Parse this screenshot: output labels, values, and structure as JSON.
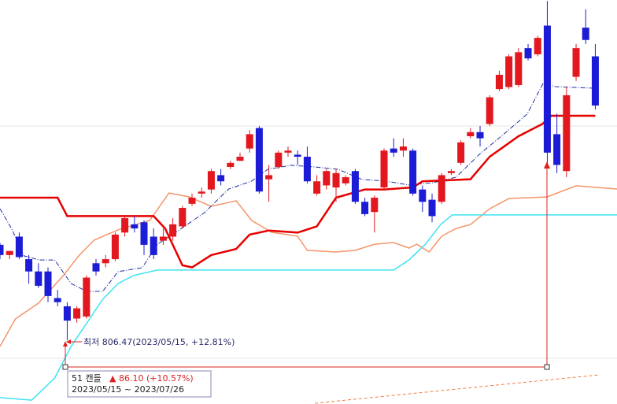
{
  "chart_data": {
    "type": "candlestick",
    "xlim": [
      0,
      64.26
    ],
    "ylim": [
      775.3,
      972.5
    ],
    "up_color": "#e3171e",
    "down_color": "#1c1cd6",
    "open": [
      853,
      848,
      857,
      846,
      840,
      840,
      827,
      823,
      817,
      818,
      844,
      844,
      846,
      859,
      863,
      864,
      857,
      855,
      857,
      862,
      873,
      878,
      880,
      887,
      891,
      894,
      900,
      910,
      885,
      891,
      898,
      897,
      896,
      878,
      882,
      881,
      883,
      889,
      874,
      869,
      881,
      900,
      899,
      899,
      880,
      875,
      874,
      888,
      893,
      906,
      908,
      912,
      929,
      930,
      931,
      949,
      946,
      960,
      907,
      889,
      935,
      959,
      945
    ],
    "high": [
      854,
      850,
      859,
      848,
      844,
      842,
      831,
      825,
      823,
      838,
      846,
      848,
      859,
      867,
      867,
      865,
      861,
      861,
      866,
      872,
      878,
      881,
      890,
      890,
      894,
      898,
      909,
      911,
      892,
      899,
      901,
      899,
      901,
      887,
      890,
      890,
      887,
      890,
      876,
      877,
      900,
      905,
      905,
      900,
      882,
      878,
      888,
      890,
      904,
      910,
      911,
      926,
      938,
      946,
      949,
      951,
      955,
      972,
      917,
      930,
      951,
      968,
      951
    ],
    "low": [
      846,
      846,
      846,
      834,
      832,
      825,
      823,
      806.47,
      815,
      817,
      838,
      842,
      845,
      857,
      859,
      848,
      846,
      853,
      855,
      861,
      872,
      876,
      878,
      882,
      890,
      894,
      898,
      878,
      874,
      890,
      896,
      892,
      883,
      877,
      880,
      874,
      882,
      873,
      867,
      859,
      880,
      896,
      896,
      877,
      869,
      864,
      873,
      887,
      892,
      905,
      901,
      911,
      928,
      929,
      930,
      943,
      945,
      892,
      888,
      886,
      933,
      951,
      919
    ],
    "close": [
      848,
      850,
      847,
      840,
      833,
      828,
      825,
      816,
      822,
      837,
      840,
      846,
      858,
      866,
      861,
      853,
      848,
      857,
      863,
      871,
      876,
      879,
      889,
      884,
      893,
      896,
      907,
      879,
      887,
      898,
      899,
      896,
      884,
      884,
      889,
      888,
      886,
      874,
      868,
      876,
      899,
      898,
      901,
      878,
      874,
      867,
      887,
      889,
      903,
      908,
      905,
      925,
      936,
      945,
      947,
      944,
      954,
      898,
      892,
      926,
      949,
      953,
      921
    ],
    "lines": [
      {
        "color": "#f4956a",
        "width": 1.5,
        "x": [
          0,
          1.6,
          4,
          6.6,
          8.2,
          9.8,
          12.3,
          15.6,
          17.6,
          19.7,
          22,
          24.6,
          26.2,
          28.3,
          31,
          32,
          35,
          37,
          39,
          41,
          42.6,
          43.4,
          44.7,
          46,
          47.5,
          49,
          51,
          53,
          57,
          60,
          64.3
        ],
        "values": [
          803.4,
          816.8,
          824.5,
          838,
          847.6,
          855.3,
          860.3,
          864.9,
          878.3,
          876.4,
          871.8,
          874.5,
          864.9,
          859.1,
          857.2,
          850.3,
          849.5,
          850.3,
          853.3,
          854.1,
          851.4,
          853.3,
          849.5,
          857.2,
          861,
          862.9,
          870.6,
          875.6,
          876.4,
          881.8,
          880.2
        ]
      },
      {
        "color": "#3ee3f2",
        "width": 1.5,
        "x": [
          0,
          3.3,
          5.7,
          7.4,
          10.7,
          12.3,
          13.9,
          16.4,
          41,
          42.6,
          44.3,
          45.9,
          47.1,
          64.3
        ],
        "values": [
          778.4,
          777.2,
          788,
          803.4,
          826.4,
          834.1,
          838,
          840.7,
          840.7,
          845.6,
          853.3,
          862.9,
          867.6,
          867.6
        ]
      },
      {
        "color": "#1f2fa0",
        "width": 1,
        "dash": "6 2 1 2",
        "x": [
          0,
          1.2,
          2.5,
          4.1,
          5.7,
          7.4,
          9,
          10.7,
          12.3,
          14.8,
          16.4,
          18.9,
          21.3,
          23.8,
          26.2,
          27.9,
          30.3,
          32.8,
          35.2,
          37.7,
          40.2,
          42.6,
          45.1,
          47.5,
          50,
          52.5,
          54.9,
          56.6,
          57.8,
          62
        ],
        "values": [
          870.6,
          861,
          847.6,
          845.6,
          845.6,
          834.1,
          830.3,
          830.3,
          839.9,
          841.8,
          853.3,
          861,
          868.7,
          880.2,
          884.1,
          889.9,
          891.8,
          891,
          889.9,
          884.9,
          884.1,
          882.2,
          883.3,
          886,
          897.5,
          907.1,
          916.8,
          932.1,
          930.2,
          929.4
        ]
      },
      {
        "color": "#e60000",
        "width": 2.5,
        "x": [
          0,
          6,
          7,
          16,
          17.2,
          19,
          20,
          22,
          24.6,
          26,
          28,
          31,
          33,
          35,
          38,
          40,
          43,
          44,
          49,
          51,
          54,
          56.5,
          57.4,
          62
        ],
        "values": [
          876,
          876,
          867,
          867,
          861,
          843,
          842,
          848,
          851,
          858,
          860,
          859,
          862,
          876,
          880,
          880,
          881,
          884,
          885,
          896,
          906,
          912,
          916,
          916
        ]
      },
      {
        "color": "#f08040",
        "width": 1,
        "dash": "4 3",
        "x": [
          32.8,
          62.3
        ],
        "values": [
          775.7,
          789.5
        ]
      }
    ],
    "low_note": "최저 806.47(2023/05/15, +12.81%)",
    "range_box": {
      "count": "51 캔들",
      "change": "▲ 86.10 (+10.57%)",
      "period": "2023/05/15 ~ 2023/07/26"
    }
  }
}
